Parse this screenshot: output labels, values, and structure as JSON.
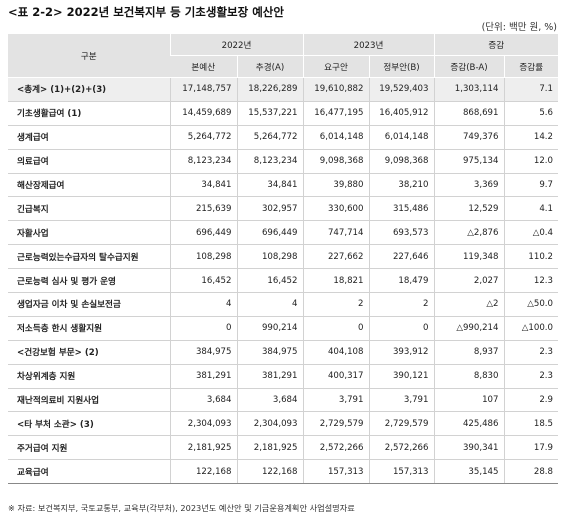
{
  "title": "<표 2-2> 2022년 보건복지부 등 기초생활보장 예산안",
  "unit": "(단위: 백만 원, %)",
  "headers": {
    "category": "구분",
    "year_2022": "2022년",
    "year_2023": "2023년",
    "change": "증감",
    "original": "본예산",
    "supplementary": "추경(A)",
    "requested": "요구안",
    "government": "정부안(B)",
    "diff": "증감(B-A)",
    "rate": "증감률"
  },
  "rows": [
    {
      "label": "<총계> (1)+(2)+(3)",
      "original": "17,148,757",
      "supplementary": "18,226,289",
      "requested": "19,610,882",
      "government": "19,529,403",
      "diff": "1,303,114",
      "rate": "7.1",
      "total": true
    },
    {
      "label": "기초생활급여 (1)",
      "original": "14,459,689",
      "supplementary": "15,537,221",
      "requested": "16,477,195",
      "government": "16,405,912",
      "diff": "868,691",
      "rate": "5.6"
    },
    {
      "label": "생계급여",
      "original": "5,264,772",
      "supplementary": "5,264,772",
      "requested": "6,014,148",
      "government": "6,014,148",
      "diff": "749,376",
      "rate": "14.2"
    },
    {
      "label": "의료급여",
      "original": "8,123,234",
      "supplementary": "8,123,234",
      "requested": "9,098,368",
      "government": "9,098,368",
      "diff": "975,134",
      "rate": "12.0"
    },
    {
      "label": "해산장제급여",
      "original": "34,841",
      "supplementary": "34,841",
      "requested": "39,880",
      "government": "38,210",
      "diff": "3,369",
      "rate": "9.7"
    },
    {
      "label": "긴급복지",
      "original": "215,639",
      "supplementary": "302,957",
      "requested": "330,600",
      "government": "315,486",
      "diff": "12,529",
      "rate": "4.1"
    },
    {
      "label": "자활사업",
      "original": "696,449",
      "supplementary": "696,449",
      "requested": "747,714",
      "government": "693,573",
      "diff": "△2,876",
      "rate": "△0.4"
    },
    {
      "label": "근로능력있는수급자의 탈수급지원",
      "original": "108,298",
      "supplementary": "108,298",
      "requested": "227,662",
      "government": "227,646",
      "diff": "119,348",
      "rate": "110.2"
    },
    {
      "label": "근로능력 심사 및 평가 운영",
      "original": "16,452",
      "supplementary": "16,452",
      "requested": "18,821",
      "government": "18,479",
      "diff": "2,027",
      "rate": "12.3"
    },
    {
      "label": "생업자금 이차 및 손실보전금",
      "original": "4",
      "supplementary": "4",
      "requested": "2",
      "government": "2",
      "diff": "△2",
      "rate": "△50.0"
    },
    {
      "label": "저소득층 한시 생활지원",
      "original": "0",
      "supplementary": "990,214",
      "requested": "0",
      "government": "0",
      "diff": "△990,214",
      "rate": "△100.0"
    },
    {
      "label": "<건강보험 부문> (2)",
      "original": "384,975",
      "supplementary": "384,975",
      "requested": "404,108",
      "government": "393,912",
      "diff": "8,937",
      "rate": "2.3"
    },
    {
      "label": "차상위계층 지원",
      "original": "381,291",
      "supplementary": "381,291",
      "requested": "400,317",
      "government": "390,121",
      "diff": "8,830",
      "rate": "2.3"
    },
    {
      "label": "재난적의료비 지원사업",
      "original": "3,684",
      "supplementary": "3,684",
      "requested": "3,791",
      "government": "3,791",
      "diff": "107",
      "rate": "2.9"
    },
    {
      "label": "<타 부처 소관> (3)",
      "original": "2,304,093",
      "supplementary": "2,304,093",
      "requested": "2,729,579",
      "government": "2,729,579",
      "diff": "425,486",
      "rate": "18.5"
    },
    {
      "label": "주거급여 지원",
      "original": "2,181,925",
      "supplementary": "2,181,925",
      "requested": "2,572,266",
      "government": "2,572,266",
      "diff": "390,341",
      "rate": "17.9"
    },
    {
      "label": "교육급여",
      "original": "122,168",
      "supplementary": "122,168",
      "requested": "157,313",
      "government": "157,313",
      "diff": "35,145",
      "rate": "28.8"
    }
  ],
  "note": "※ 자료: 보건복지부, 국토교통부, 교육부(각부처), 2023년도 예산안 및 기금운용계획안 사업설명자료"
}
